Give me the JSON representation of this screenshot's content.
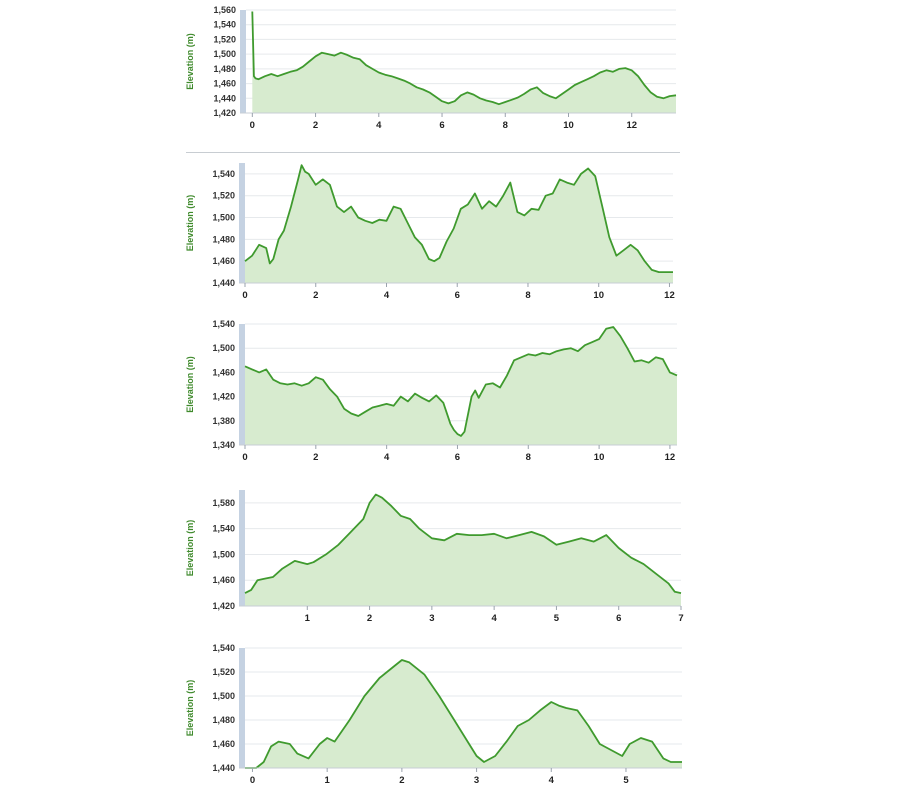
{
  "colors": {
    "line": "#3f9a2e",
    "fill": "#d7ebcf",
    "grid": "#e6e9ec",
    "axis_strip": "#c5d2e2",
    "label": "#3f8a2c"
  },
  "chart_data": [
    {
      "type": "area",
      "ylabel": "Elevation (m)",
      "xlim": [
        -0.2,
        13.4
      ],
      "ylim": [
        1420,
        1560
      ],
      "yticks": [
        1420,
        1440,
        1460,
        1480,
        1500,
        1520,
        1540,
        1560
      ],
      "yticklabels": [
        "1,420",
        "1,440",
        "1,460",
        "1,480",
        "1,500",
        "1,520",
        "1,540",
        "1,560"
      ],
      "xticks": [
        0,
        2,
        4,
        6,
        8,
        10,
        12
      ],
      "xticklabels": [
        "0",
        "2",
        "4",
        "6",
        "8",
        "10",
        "12"
      ],
      "x": [
        0,
        0.02,
        0.05,
        0.1,
        0.2,
        0.4,
        0.6,
        0.8,
        1.0,
        1.2,
        1.4,
        1.6,
        1.8,
        2.0,
        2.2,
        2.4,
        2.6,
        2.8,
        3.0,
        3.2,
        3.4,
        3.6,
        3.8,
        4.0,
        4.2,
        4.4,
        4.6,
        4.8,
        5.0,
        5.2,
        5.4,
        5.6,
        5.8,
        6.0,
        6.2,
        6.4,
        6.6,
        6.8,
        7.0,
        7.2,
        7.4,
        7.6,
        7.8,
        8.0,
        8.2,
        8.4,
        8.6,
        8.8,
        9.0,
        9.2,
        9.4,
        9.6,
        9.8,
        10.0,
        10.2,
        10.4,
        10.6,
        10.8,
        11.0,
        11.2,
        11.4,
        11.6,
        11.8,
        12.0,
        12.2,
        12.4,
        12.6,
        12.8,
        13.0,
        13.2,
        13.4
      ],
      "y": [
        1558,
        1520,
        1470,
        1467,
        1466,
        1470,
        1473,
        1470,
        1473,
        1476,
        1478,
        1483,
        1490,
        1497,
        1502,
        1500,
        1498,
        1502,
        1499,
        1495,
        1493,
        1485,
        1480,
        1475,
        1472,
        1470,
        1467,
        1464,
        1460,
        1455,
        1452,
        1448,
        1442,
        1436,
        1433,
        1436,
        1444,
        1448,
        1445,
        1440,
        1437,
        1435,
        1432,
        1435,
        1438,
        1441,
        1446,
        1452,
        1455,
        1447,
        1443,
        1440,
        1446,
        1452,
        1458,
        1462,
        1466,
        1470,
        1475,
        1478,
        1476,
        1480,
        1481,
        1478,
        1470,
        1458,
        1448,
        1442,
        1440,
        1443,
        1444
      ]
    },
    {
      "type": "area",
      "ylabel": "Elevation (m)",
      "xlim": [
        0,
        12.1
      ],
      "ylim": [
        1440,
        1550
      ],
      "yticks": [
        1440,
        1460,
        1480,
        1500,
        1520,
        1540
      ],
      "yticklabels": [
        "1,440",
        "1,460",
        "1,480",
        "1,500",
        "1,520",
        "1,540"
      ],
      "xticks": [
        0,
        2,
        4,
        6,
        8,
        10,
        12
      ],
      "xticklabels": [
        "0",
        "2",
        "4",
        "6",
        "8",
        "10",
        "12"
      ],
      "x": [
        0,
        0.2,
        0.4,
        0.6,
        0.7,
        0.8,
        0.95,
        1.1,
        1.3,
        1.5,
        1.6,
        1.7,
        1.8,
        2.0,
        2.2,
        2.4,
        2.6,
        2.8,
        3.0,
        3.2,
        3.4,
        3.6,
        3.8,
        4.0,
        4.2,
        4.4,
        4.6,
        4.8,
        5.0,
        5.2,
        5.35,
        5.5,
        5.7,
        5.9,
        6.1,
        6.3,
        6.5,
        6.7,
        6.9,
        7.1,
        7.3,
        7.5,
        7.7,
        7.9,
        8.1,
        8.3,
        8.5,
        8.7,
        8.9,
        9.1,
        9.3,
        9.5,
        9.7,
        9.9,
        10.1,
        10.3,
        10.5,
        10.7,
        10.9,
        11.1,
        11.3,
        11.5,
        11.7,
        11.9,
        12.1
      ],
      "y": [
        1460,
        1465,
        1475,
        1472,
        1458,
        1462,
        1480,
        1488,
        1510,
        1535,
        1548,
        1542,
        1540,
        1530,
        1535,
        1530,
        1510,
        1505,
        1510,
        1500,
        1497,
        1495,
        1498,
        1497,
        1510,
        1508,
        1495,
        1482,
        1475,
        1462,
        1460,
        1463,
        1478,
        1490,
        1508,
        1512,
        1522,
        1508,
        1515,
        1510,
        1520,
        1532,
        1505,
        1502,
        1508,
        1507,
        1520,
        1522,
        1535,
        1532,
        1530,
        1540,
        1545,
        1538,
        1510,
        1482,
        1465,
        1470,
        1475,
        1470,
        1460,
        1452,
        1450,
        1450,
        1450
      ]
    },
    {
      "type": "area",
      "ylabel": "Elevation (m)",
      "xlim": [
        0,
        12.2
      ],
      "ylim": [
        1340,
        1540
      ],
      "yticks": [
        1340,
        1380,
        1420,
        1460,
        1500,
        1540
      ],
      "yticklabels": [
        "1,340",
        "1,380",
        "1,420",
        "1,460",
        "1,500",
        "1,540"
      ],
      "xticks": [
        0,
        2,
        4,
        6,
        8,
        10,
        12
      ],
      "xticklabels": [
        "0",
        "2",
        "4",
        "6",
        "8",
        "10",
        "12"
      ],
      "x": [
        0,
        0.2,
        0.4,
        0.6,
        0.8,
        1.0,
        1.2,
        1.4,
        1.6,
        1.8,
        2.0,
        2.2,
        2.4,
        2.6,
        2.8,
        3.0,
        3.2,
        3.4,
        3.6,
        3.8,
        4.0,
        4.2,
        4.4,
        4.6,
        4.8,
        5.0,
        5.2,
        5.4,
        5.6,
        5.8,
        5.9,
        6.0,
        6.1,
        6.2,
        6.4,
        6.5,
        6.6,
        6.8,
        7.0,
        7.2,
        7.4,
        7.6,
        7.8,
        8.0,
        8.2,
        8.4,
        8.6,
        8.8,
        9.0,
        9.2,
        9.4,
        9.6,
        9.8,
        10.0,
        10.2,
        10.4,
        10.6,
        10.8,
        11.0,
        11.2,
        11.4,
        11.6,
        11.8,
        12.0,
        12.2
      ],
      "y": [
        1470,
        1465,
        1460,
        1465,
        1448,
        1442,
        1440,
        1442,
        1438,
        1442,
        1452,
        1448,
        1432,
        1420,
        1400,
        1392,
        1388,
        1395,
        1402,
        1405,
        1408,
        1405,
        1420,
        1412,
        1425,
        1418,
        1412,
        1422,
        1410,
        1375,
        1365,
        1358,
        1355,
        1362,
        1420,
        1430,
        1418,
        1440,
        1442,
        1435,
        1455,
        1480,
        1485,
        1490,
        1488,
        1492,
        1490,
        1495,
        1498,
        1500,
        1495,
        1505,
        1510,
        1515,
        1532,
        1535,
        1520,
        1500,
        1478,
        1480,
        1476,
        1485,
        1482,
        1460,
        1455
      ]
    },
    {
      "type": "area",
      "ylabel": "Elevation (m)",
      "xlim": [
        0,
        7
      ],
      "ylim": [
        1420,
        1600
      ],
      "yticks": [
        1420,
        1460,
        1500,
        1540,
        1580
      ],
      "yticklabels": [
        "1,420",
        "1,460",
        "1,500",
        "1,540",
        "1,580"
      ],
      "xticks": [
        1,
        2,
        3,
        4,
        5,
        6,
        7
      ],
      "xticklabels": [
        "1",
        "2",
        "3",
        "4",
        "5",
        "6",
        "7"
      ],
      "x": [
        0,
        0.1,
        0.2,
        0.3,
        0.45,
        0.6,
        0.8,
        1.0,
        1.1,
        1.3,
        1.5,
        1.7,
        1.9,
        2.0,
        2.1,
        2.2,
        2.35,
        2.5,
        2.65,
        2.8,
        3.0,
        3.2,
        3.4,
        3.6,
        3.8,
        4.0,
        4.2,
        4.4,
        4.6,
        4.8,
        5.0,
        5.2,
        5.4,
        5.6,
        5.8,
        6.0,
        6.2,
        6.4,
        6.6,
        6.8,
        6.9,
        7.0
      ],
      "y": [
        1440,
        1445,
        1460,
        1462,
        1465,
        1478,
        1490,
        1485,
        1488,
        1500,
        1515,
        1535,
        1555,
        1580,
        1593,
        1588,
        1575,
        1560,
        1555,
        1540,
        1525,
        1522,
        1532,
        1530,
        1530,
        1532,
        1525,
        1530,
        1535,
        1528,
        1515,
        1520,
        1525,
        1520,
        1530,
        1510,
        1495,
        1485,
        1470,
        1455,
        1442,
        1440
      ]
    },
    {
      "type": "area",
      "ylabel": "Elevation (m)",
      "xlim": [
        -0.1,
        5.75
      ],
      "ylim": [
        1440,
        1540
      ],
      "yticks": [
        1440,
        1460,
        1480,
        1500,
        1520,
        1540
      ],
      "yticklabels": [
        "1,440",
        "1,460",
        "1,480",
        "1,500",
        "1,520",
        "1,540"
      ],
      "xticks": [
        0,
        1,
        2,
        3,
        4,
        5
      ],
      "xticklabels": [
        "0",
        "1",
        "2",
        "3",
        "4",
        "5"
      ],
      "x": [
        -0.1,
        0.05,
        0.15,
        0.25,
        0.35,
        0.5,
        0.6,
        0.75,
        0.9,
        1.0,
        1.1,
        1.3,
        1.5,
        1.7,
        1.9,
        2.0,
        2.1,
        2.3,
        2.5,
        2.7,
        2.9,
        3.0,
        3.1,
        3.25,
        3.4,
        3.55,
        3.7,
        3.85,
        4.0,
        4.1,
        4.2,
        4.35,
        4.5,
        4.65,
        4.8,
        4.95,
        5.05,
        5.2,
        5.35,
        5.5,
        5.6,
        5.75
      ],
      "y": [
        1440,
        1440,
        1445,
        1458,
        1462,
        1460,
        1452,
        1448,
        1460,
        1465,
        1462,
        1480,
        1500,
        1515,
        1525,
        1530,
        1528,
        1518,
        1500,
        1480,
        1460,
        1450,
        1445,
        1450,
        1462,
        1475,
        1480,
        1488,
        1495,
        1492,
        1490,
        1488,
        1475,
        1460,
        1455,
        1450,
        1460,
        1465,
        1462,
        1448,
        1445,
        1445
      ]
    }
  ]
}
